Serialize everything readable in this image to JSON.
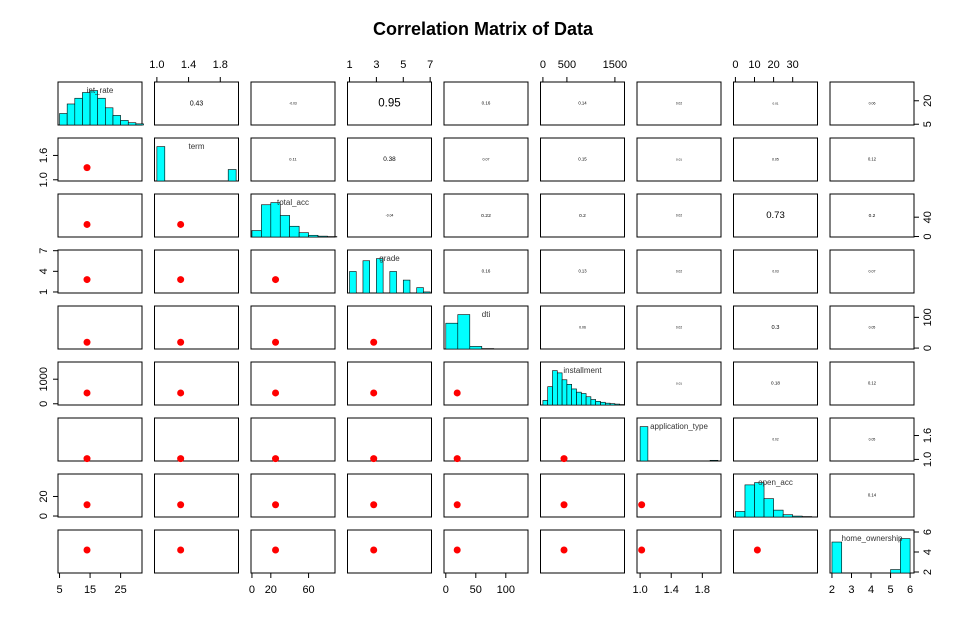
{
  "chart_data": {
    "type": "pairs",
    "title": "Correlation Matrix of Data",
    "hist_color": "#00ffff",
    "mean_color": "#ff0000",
    "variables": [
      {
        "name": "int_rate",
        "lim": [
          4.5,
          32
        ],
        "xticks": [
          5,
          15,
          25
        ],
        "yticks": [
          5,
          20
        ],
        "mean": 14,
        "hist": {
          "bins": [
            5,
            7.5,
            10,
            12.5,
            15,
            17.5,
            20,
            22.5,
            25,
            27.5,
            30,
            32.5
          ],
          "counts": [
            30,
            55,
            70,
            85,
            90,
            70,
            45,
            25,
            12,
            6,
            3
          ]
        }
      },
      {
        "name": "term",
        "lim": [
          0.97,
          2.03
        ],
        "xticks": [
          {
            "value": 1,
            "label": "1.0"
          },
          1.4,
          1.8
        ],
        "yticks": [
          {
            "value": 1,
            "label": "1.0"
          },
          1.6
        ],
        "mean": 1.3,
        "hist": {
          "bins": [
            1,
            1.1,
            1.2,
            1.3,
            1.4,
            1.5,
            1.6,
            1.7,
            1.8,
            1.9,
            2
          ],
          "counts": [
            75,
            0,
            0,
            0,
            0,
            0,
            0,
            0,
            0,
            25
          ]
        }
      },
      {
        "name": "total_acc",
        "lim": [
          -1,
          88
        ],
        "xticks": [
          0,
          20,
          60
        ],
        "yticks": [
          0,
          40
        ],
        "mean": 25,
        "hist": {
          "bins": [
            0,
            10,
            20,
            30,
            40,
            50,
            60,
            70,
            80,
            90
          ],
          "counts": [
            15,
            75,
            80,
            50,
            25,
            10,
            4,
            2,
            1
          ]
        }
      },
      {
        "name": "grade",
        "lim": [
          0.85,
          7.1
        ],
        "xticks": [
          1,
          3,
          5,
          7
        ],
        "yticks": [
          1,
          4,
          7
        ],
        "mean": 2.8,
        "hist": {
          "bins": [
            1,
            1.5,
            2,
            2.5,
            3,
            3.5,
            4,
            4.5,
            5,
            5.5,
            6,
            6.5,
            7
          ],
          "counts": [
            20,
            0,
            30,
            0,
            32,
            0,
            20,
            0,
            12,
            0,
            5,
            1
          ]
        }
      },
      {
        "name": "dti",
        "lim": [
          -3,
          137
        ],
        "xticks": [
          0,
          50,
          100
        ],
        "yticks": [
          0,
          100
        ],
        "mean": 19,
        "hist": {
          "bins": [
            0,
            20,
            40,
            60,
            80,
            100,
            120,
            140
          ],
          "counts": [
            60,
            80,
            6,
            1,
            0,
            0,
            0
          ]
        }
      },
      {
        "name": "installment",
        "lim": [
          -50,
          1700
        ],
        "xticks": [
          0,
          500,
          1500
        ],
        "yticks": [
          0,
          1000
        ],
        "mean": 440,
        "hist": {
          "bins": [
            0,
            100,
            200,
            300,
            400,
            500,
            600,
            700,
            800,
            900,
            1000,
            1100,
            1200,
            1300,
            1400,
            1500,
            1600,
            1700
          ],
          "counts": [
            10,
            40,
            75,
            70,
            55,
            45,
            35,
            28,
            25,
            18,
            12,
            8,
            6,
            4,
            3,
            2,
            1
          ]
        }
      },
      {
        "name": "application_type",
        "lim": [
          0.96,
          2.04
        ],
        "xticks": [
          {
            "value": 1,
            "label": "1.0"
          },
          1.4,
          1.8
        ],
        "yticks": [
          {
            "value": 1,
            "label": "1.0"
          },
          1.6
        ],
        "mean": 1.02,
        "hist": {
          "bins": [
            1,
            1.1,
            1.2,
            1.3,
            1.4,
            1.5,
            1.6,
            1.7,
            1.8,
            1.9,
            2
          ],
          "counts": [
            98,
            0,
            0,
            0,
            0,
            0,
            0,
            0,
            0,
            2
          ]
        }
      },
      {
        "name": "open_acc",
        "lim": [
          -1,
          43
        ],
        "xticks": [
          0,
          10,
          20,
          30
        ],
        "yticks": [
          0,
          20
        ],
        "mean": 11.5,
        "hist": {
          "bins": [
            0,
            5,
            10,
            15,
            20,
            25,
            30,
            35,
            40,
            45
          ],
          "counts": [
            12,
            70,
            75,
            40,
            15,
            5,
            2,
            1,
            0
          ]
        }
      },
      {
        "name": "home_ownership",
        "lim": [
          1.9,
          6.2
        ],
        "xticks": [
          2,
          3,
          4,
          5,
          6
        ],
        "yticks": [
          2,
          4,
          6
        ],
        "mean": 4.2,
        "hist": {
          "bins": [
            2,
            2.5,
            3,
            3.5,
            4,
            4.5,
            5,
            5.5,
            6
          ],
          "counts": [
            45,
            0,
            0,
            0,
            0,
            0,
            5,
            50
          ]
        }
      }
    ],
    "correlations": [
      [
        0.43,
        -0.03,
        0.95,
        0.16,
        0.14,
        0.02,
        0.01,
        0.06
      ],
      [
        0.11,
        0.38,
        0.07,
        0.15,
        0.01,
        0.05,
        0.12
      ],
      [
        -0.04,
        0.22,
        0.2,
        0.02,
        0.73,
        0.2
      ],
      [
        0.16,
        0.13,
        0.02,
        0.03,
        0.07
      ],
      [
        0.06,
        0.02,
        0.3,
        0.05
      ],
      [
        0.01,
        0.18,
        0.12
      ],
      [
        0.02,
        0.05
      ],
      [
        0.14
      ]
    ]
  }
}
